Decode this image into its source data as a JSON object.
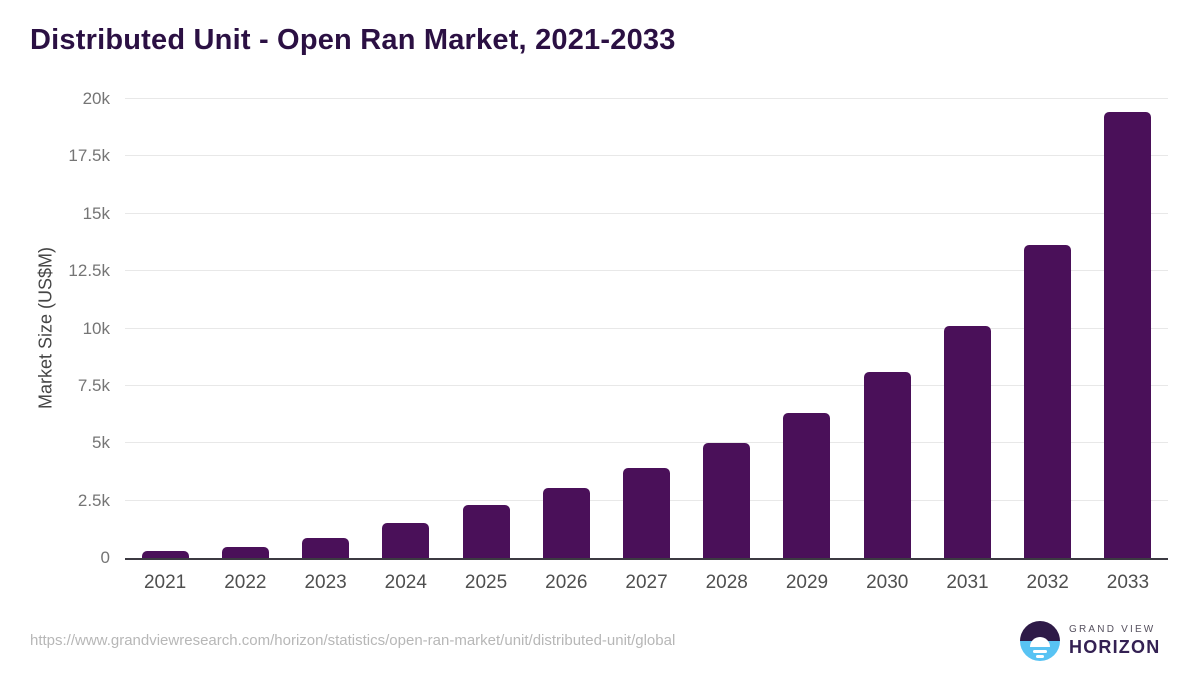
{
  "header": {
    "title": "Distributed Unit - Open Ran Market, 2021-2033"
  },
  "chart_data": {
    "type": "bar",
    "title": "Distributed Unit - Open Ran Market, 2021-2033",
    "xlabel": "",
    "ylabel": "Market Size (US$M)",
    "categories": [
      "2021",
      "2022",
      "2023",
      "2024",
      "2025",
      "2026",
      "2027",
      "2028",
      "2029",
      "2030",
      "2031",
      "2032",
      "2033"
    ],
    "values": [
      300,
      490,
      880,
      1540,
      2290,
      3060,
      3930,
      5000,
      6330,
      8110,
      10130,
      13660,
      19450
    ],
    "ylim": [
      0,
      20000
    ],
    "yticks": [
      {
        "value": 0,
        "label": "0"
      },
      {
        "value": 2500,
        "label": "2.5k"
      },
      {
        "value": 5000,
        "label": "5k"
      },
      {
        "value": 7500,
        "label": "7.5k"
      },
      {
        "value": 10000,
        "label": "10k"
      },
      {
        "value": 12500,
        "label": "12.5k"
      },
      {
        "value": 15000,
        "label": "15k"
      },
      {
        "value": 17500,
        "label": "17.5k"
      },
      {
        "value": 20000,
        "label": "20k"
      }
    ],
    "grid": "horizontal",
    "legend_position": "none",
    "bar_color": "#4a1059"
  },
  "colors": {
    "bar": "#4a1059",
    "title": "#2b1043",
    "gridline": "#e8e8e8",
    "axis_line": "#3c3a42",
    "logo_purple": "#2e1a47",
    "logo_blue": "#58c3f3"
  },
  "footer": {
    "source_url": "https://www.grandviewresearch.com/horizon/statistics/open-ran-market/unit/distributed-unit/global",
    "logo_line1": "GRAND VIEW",
    "logo_line2": "HORIZON"
  }
}
